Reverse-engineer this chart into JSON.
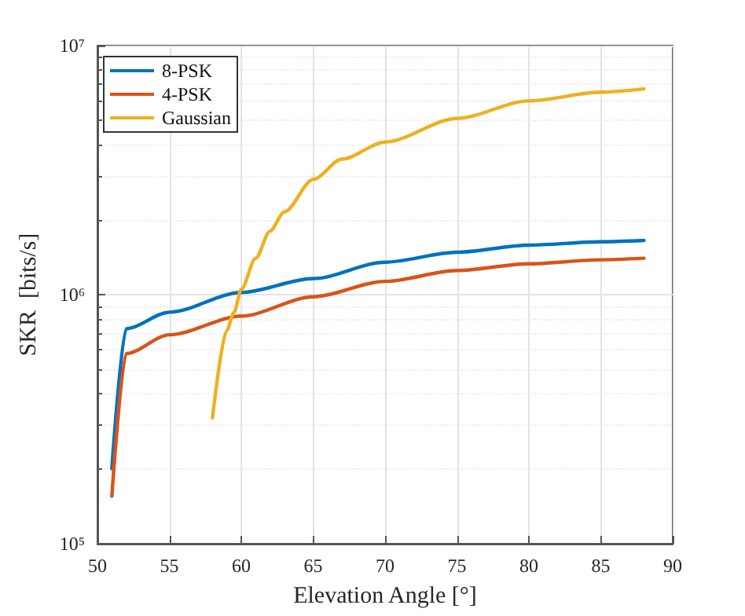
{
  "chart_data": {
    "type": "line",
    "xlabel": "Elevation Angle [°]",
    "ylabel": "SKR  [bits/s]",
    "log": "y",
    "grid": true,
    "legend": "top left",
    "marker": "none",
    "line_style": "solid",
    "xlim": [
      50,
      90
    ],
    "xticks": [
      50,
      55,
      60,
      65,
      70,
      75,
      80,
      85,
      90
    ],
    "ylim": [
      100000,
      10000000
    ],
    "yticks": [
      {
        "value": 100000,
        "label": "10⁵"
      },
      {
        "value": 1000000,
        "label": "10⁶"
      },
      {
        "value": 10000000,
        "label": "10⁷"
      }
    ],
    "series": [
      {
        "name": "8-PSK",
        "color": "#0072bd",
        "x": [
          51,
          52,
          55,
          60,
          65,
          70,
          75,
          80,
          85,
          88
        ],
        "values": [
          200000,
          730000,
          850000,
          1020000,
          1160000,
          1350000,
          1480000,
          1580000,
          1630000,
          1650000
        ]
      },
      {
        "name": "4-PSK",
        "color": "#d95319",
        "x": [
          51,
          52,
          55,
          60,
          65,
          70,
          75,
          80,
          85,
          88
        ],
        "values": [
          155000,
          580000,
          690000,
          820000,
          980000,
          1130000,
          1250000,
          1330000,
          1380000,
          1400000
        ]
      },
      {
        "name": "Gaussian",
        "color": "#edb120",
        "x": [
          58,
          59,
          59.5,
          60,
          61,
          62,
          63,
          65,
          67,
          70,
          75,
          80,
          85,
          88
        ],
        "values": [
          320000,
          720000,
          850000,
          1050000,
          1400000,
          1800000,
          2150000,
          2900000,
          3500000,
          4100000,
          5100000,
          6000000,
          6500000,
          6700000
        ]
      }
    ]
  }
}
